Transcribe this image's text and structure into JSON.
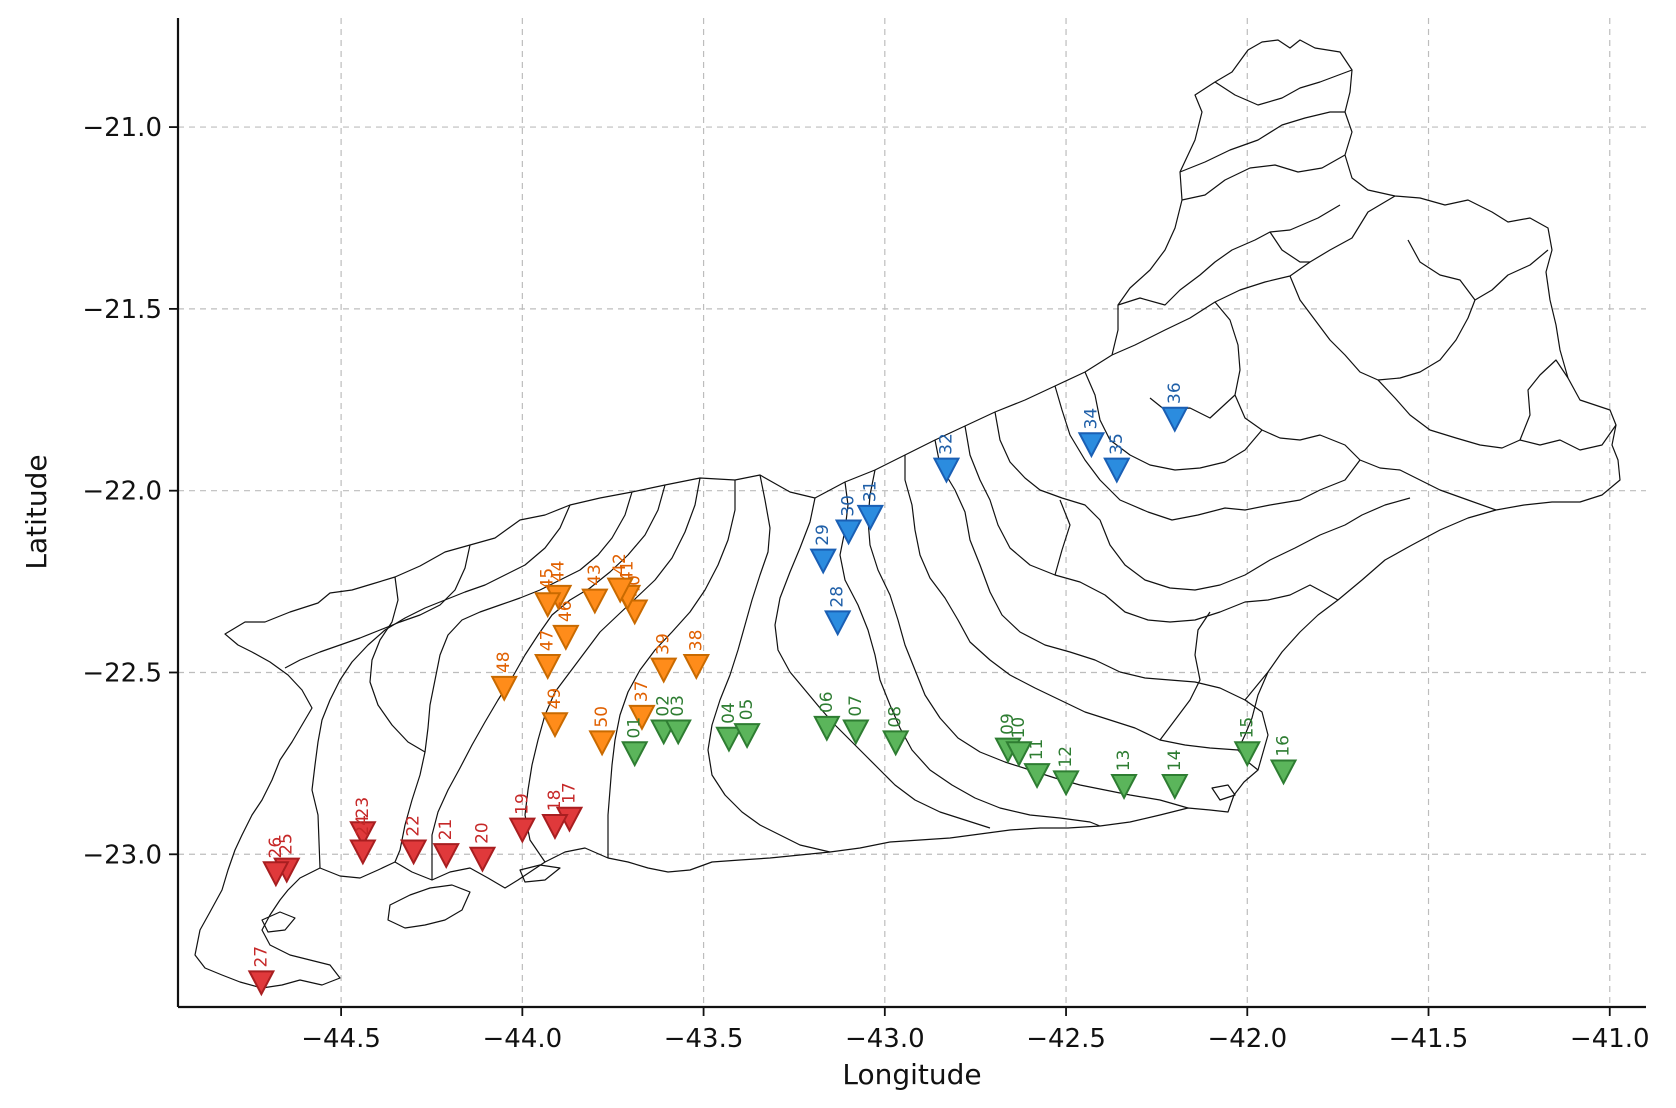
{
  "chart_data": {
    "type": "scatter",
    "title": "",
    "xlabel": "Longitude",
    "ylabel": "Latitude",
    "xlim": [
      -44.95,
      -40.9
    ],
    "ylim": [
      -23.42,
      -20.7
    ],
    "xticks": [
      -44.5,
      -44.0,
      -43.5,
      -43.0,
      -42.5,
      -42.0,
      -41.5,
      -41.0
    ],
    "xtick_labels": [
      "−44.5",
      "−44.0",
      "−43.5",
      "−43.0",
      "−42.5",
      "−42.0",
      "−41.5",
      "−41.0"
    ],
    "yticks": [
      -21.0,
      -21.5,
      -22.0,
      -22.5,
      -23.0
    ],
    "ytick_labels": [
      "−21.0",
      "−21.5",
      "−22.0",
      "−22.5",
      "−23.0"
    ],
    "grid": true,
    "marker": "triangle-down",
    "series": [
      {
        "color": "#2b8cdf",
        "edge": "#1a5fb4",
        "label_color": "#1f5fa8",
        "points": [
          {
            "id": "28",
            "lon": -43.13,
            "lat": -22.36
          },
          {
            "id": "29",
            "lon": -43.17,
            "lat": -22.19
          },
          {
            "id": "30",
            "lon": -43.1,
            "lat": -22.11
          },
          {
            "id": "31",
            "lon": -43.04,
            "lat": -22.07
          },
          {
            "id": "32",
            "lon": -42.83,
            "lat": -21.94
          },
          {
            "id": "34",
            "lon": -42.43,
            "lat": -21.87
          },
          {
            "id": "35",
            "lon": -42.36,
            "lat": -21.94
          },
          {
            "id": "36",
            "lon": -42.2,
            "lat": -21.8
          }
        ]
      },
      {
        "color": "#ff8c1a",
        "edge": "#c96a00",
        "label_color": "#e06000",
        "points": [
          {
            "id": "37",
            "lon": -43.67,
            "lat": -22.62
          },
          {
            "id": "38",
            "lon": -43.52,
            "lat": -22.48
          },
          {
            "id": "39",
            "lon": -43.61,
            "lat": -22.49
          },
          {
            "id": "40",
            "lon": -43.69,
            "lat": -22.33
          },
          {
            "id": "41",
            "lon": -43.71,
            "lat": -22.29
          },
          {
            "id": "42",
            "lon": -43.73,
            "lat": -22.27
          },
          {
            "id": "43",
            "lon": -43.8,
            "lat": -22.3
          },
          {
            "id": "44",
            "lon": -43.9,
            "lat": -22.29
          },
          {
            "id": "45",
            "lon": -43.93,
            "lat": -22.31
          },
          {
            "id": "46",
            "lon": -43.88,
            "lat": -22.4
          },
          {
            "id": "47",
            "lon": -43.93,
            "lat": -22.48
          },
          {
            "id": "48",
            "lon": -44.05,
            "lat": -22.54
          },
          {
            "id": "49",
            "lon": -43.91,
            "lat": -22.64
          },
          {
            "id": "50",
            "lon": -43.78,
            "lat": -22.69
          }
        ]
      },
      {
        "color": "#5bb55b",
        "edge": "#2e7d32",
        "label_color": "#2e7d32",
        "points": [
          {
            "id": "01",
            "lon": -43.69,
            "lat": -22.72
          },
          {
            "id": "02",
            "lon": -43.61,
            "lat": -22.66
          },
          {
            "id": "03",
            "lon": -43.57,
            "lat": -22.66
          },
          {
            "id": "04",
            "lon": -43.43,
            "lat": -22.68
          },
          {
            "id": "05",
            "lon": -43.38,
            "lat": -22.67
          },
          {
            "id": "06",
            "lon": -43.16,
            "lat": -22.65
          },
          {
            "id": "07",
            "lon": -43.08,
            "lat": -22.66
          },
          {
            "id": "08",
            "lon": -42.97,
            "lat": -22.69
          },
          {
            "id": "09",
            "lon": -42.66,
            "lat": -22.71
          },
          {
            "id": "10",
            "lon": -42.63,
            "lat": -22.72
          },
          {
            "id": "11",
            "lon": -42.58,
            "lat": -22.78
          },
          {
            "id": "12",
            "lon": -42.5,
            "lat": -22.8
          },
          {
            "id": "13",
            "lon": -42.34,
            "lat": -22.81
          },
          {
            "id": "14",
            "lon": -42.2,
            "lat": -22.81
          },
          {
            "id": "15",
            "lon": -42.0,
            "lat": -22.72
          },
          {
            "id": "16",
            "lon": -41.9,
            "lat": -22.77
          }
        ]
      },
      {
        "color": "#e0393b",
        "edge": "#a81e20",
        "label_color": "#c62828",
        "points": [
          {
            "id": "17",
            "lon": -43.87,
            "lat": -22.9
          },
          {
            "id": "18",
            "lon": -43.91,
            "lat": -22.92
          },
          {
            "id": "19",
            "lon": -44.0,
            "lat": -22.93
          },
          {
            "id": "20",
            "lon": -44.11,
            "lat": -23.01
          },
          {
            "id": "21",
            "lon": -44.21,
            "lat": -23.0
          },
          {
            "id": "22",
            "lon": -44.3,
            "lat": -22.99
          },
          {
            "id": "23",
            "lon": -44.44,
            "lat": -22.94
          },
          {
            "id": "24",
            "lon": -44.44,
            "lat": -22.99
          },
          {
            "id": "25",
            "lon": -44.65,
            "lat": -23.04
          },
          {
            "id": "26",
            "lon": -44.68,
            "lat": -23.05
          },
          {
            "id": "27",
            "lon": -44.72,
            "lat": -23.35
          }
        ]
      }
    ]
  }
}
